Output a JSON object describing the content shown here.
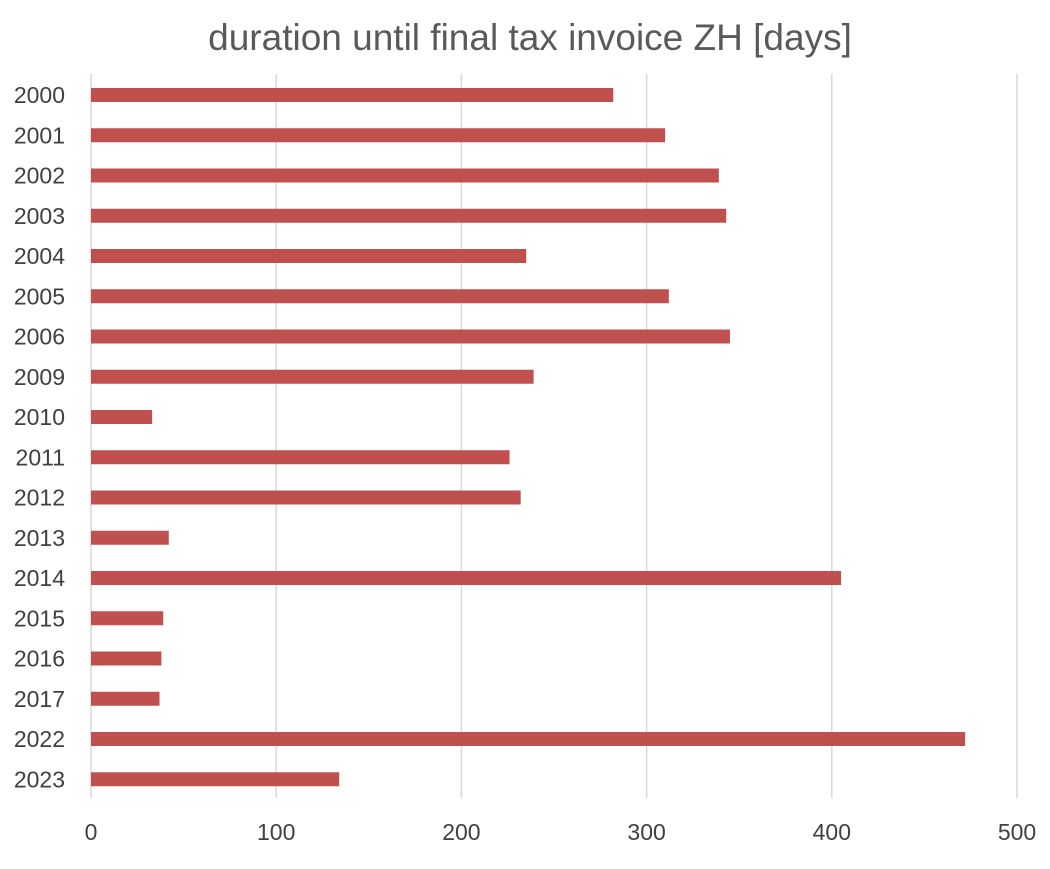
{
  "chart_data": {
    "type": "bar",
    "orientation": "horizontal",
    "title": "duration until final tax invoice ZH [days]",
    "xlabel": "",
    "ylabel": "",
    "categories": [
      "2000",
      "2001",
      "2002",
      "2003",
      "2004",
      "2005",
      "2006",
      "2009",
      "2010",
      "2011",
      "2012",
      "2013",
      "2014",
      "2015",
      "2016",
      "2017",
      "2022",
      "2023"
    ],
    "values": [
      282,
      310,
      339,
      343,
      235,
      312,
      345,
      239,
      33,
      226,
      232,
      42,
      405,
      39,
      38,
      37,
      472,
      134
    ],
    "xlim": [
      0,
      500
    ],
    "xticks": [
      0,
      100,
      200,
      300,
      400,
      500
    ],
    "grid": true,
    "legend": "none",
    "bar_color": "#c0504d"
  }
}
